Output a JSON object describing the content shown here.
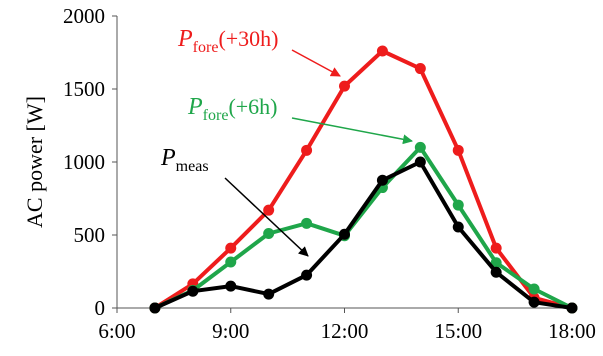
{
  "chart_data": {
    "type": "line",
    "title": "",
    "xlabel": "",
    "ylabel": "AC power  [W]",
    "xlim": [
      6,
      18
    ],
    "ylim": [
      0,
      2000
    ],
    "x_ticks": [
      "6:00",
      "9:00",
      "12:00",
      "15:00",
      "18:00"
    ],
    "y_ticks": [
      "0",
      "500",
      "1000",
      "1500",
      "2000"
    ],
    "grid": false,
    "x": [
      7,
      8,
      9,
      10,
      11,
      12,
      13,
      14,
      15,
      16,
      17,
      18
    ],
    "series": [
      {
        "id": "fore30",
        "color": "#ee1c1c",
        "values": [
          0,
          165,
          410,
          670,
          1080,
          1520,
          1760,
          1640,
          1080,
          410,
          70,
          0
        ],
        "label": {
          "main": "P",
          "sub": "fore",
          "suffix": "(+30h)"
        }
      },
      {
        "id": "fore6",
        "color": "#1fa64a",
        "values": [
          0,
          120,
          315,
          510,
          580,
          495,
          825,
          1100,
          705,
          310,
          130,
          0
        ],
        "label": {
          "main": "P",
          "sub": "fore",
          "suffix": "(+6h)"
        }
      },
      {
        "id": "meas",
        "color": "#000000",
        "values": [
          0,
          115,
          150,
          95,
          225,
          505,
          875,
          1000,
          555,
          245,
          40,
          0
        ],
        "label": {
          "main": "P",
          "sub": "meas",
          "suffix": ""
        }
      }
    ]
  }
}
